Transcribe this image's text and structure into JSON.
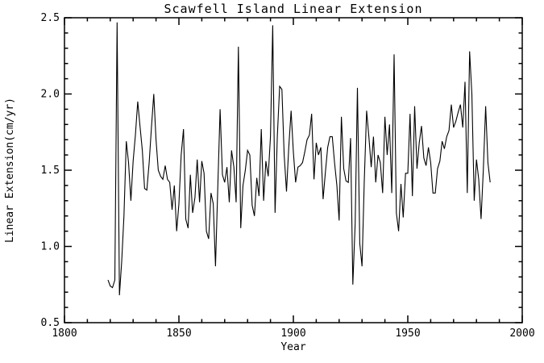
{
  "figure": {
    "background_color": "#ffffff",
    "line_color": "#000000",
    "frame_color": "#000000"
  },
  "chart_data": {
    "type": "line",
    "title": "Scawfell Island Linear Extension",
    "xlabel": "Year",
    "ylabel": "Linear Extension(cm/yr)",
    "xlim": [
      1800,
      2000
    ],
    "ylim": [
      0.5,
      2.5
    ],
    "x_major_ticks": [
      1800,
      1850,
      1900,
      1950,
      2000
    ],
    "x_minor_step": 10,
    "y_major_ticks": [
      0.5,
      1.0,
      1.5,
      2.0,
      2.5
    ],
    "y_minor_step": 0.1,
    "grid": false,
    "legend": "none",
    "ticks": "inward on all four sides",
    "series": [
      {
        "name": "linear-extension",
        "x": [
          1819,
          1820,
          1821,
          1822,
          1823,
          1824,
          1825,
          1826,
          1827,
          1828,
          1829,
          1830,
          1831,
          1832,
          1833,
          1834,
          1835,
          1836,
          1837,
          1838,
          1839,
          1840,
          1841,
          1842,
          1843,
          1844,
          1845,
          1846,
          1847,
          1848,
          1849,
          1850,
          1851,
          1852,
          1853,
          1854,
          1855,
          1856,
          1857,
          1858,
          1859,
          1860,
          1861,
          1862,
          1863,
          1864,
          1865,
          1866,
          1867,
          1868,
          1869,
          1870,
          1871,
          1872,
          1873,
          1874,
          1875,
          1876,
          1877,
          1878,
          1879,
          1880,
          1881,
          1882,
          1883,
          1884,
          1885,
          1886,
          1887,
          1888,
          1889,
          1890,
          1891,
          1892,
          1893,
          1894,
          1895,
          1896,
          1897,
          1898,
          1899,
          1900,
          1901,
          1902,
          1903,
          1904,
          1905,
          1906,
          1907,
          1908,
          1909,
          1910,
          1911,
          1912,
          1913,
          1914,
          1915,
          1916,
          1917,
          1918,
          1919,
          1920,
          1921,
          1922,
          1923,
          1924,
          1925,
          1926,
          1927,
          1928,
          1929,
          1930,
          1931,
          1932,
          1933,
          1934,
          1935,
          1936,
          1937,
          1938,
          1939,
          1940,
          1941,
          1942,
          1943,
          1944,
          1945,
          1946,
          1947,
          1948,
          1949,
          1950,
          1951,
          1952,
          1953,
          1954,
          1955,
          1956,
          1957,
          1958,
          1959,
          1960,
          1961,
          1962,
          1963,
          1964,
          1965,
          1966,
          1967,
          1968,
          1969,
          1970,
          1971,
          1972,
          1973,
          1974,
          1975,
          1976,
          1977,
          1978,
          1979,
          1980,
          1981,
          1982,
          1983,
          1984,
          1985,
          1986
        ],
        "y": [
          0.78,
          0.74,
          0.73,
          0.78,
          2.47,
          0.68,
          0.9,
          1.2,
          1.69,
          1.55,
          1.3,
          1.56,
          1.73,
          1.95,
          1.79,
          1.63,
          1.38,
          1.37,
          1.55,
          1.78,
          2.0,
          1.7,
          1.5,
          1.46,
          1.44,
          1.53,
          1.44,
          1.42,
          1.24,
          1.4,
          1.1,
          1.28,
          1.6,
          1.77,
          1.18,
          1.12,
          1.47,
          1.22,
          1.32,
          1.57,
          1.29,
          1.56,
          1.48,
          1.1,
          1.05,
          1.35,
          1.28,
          0.87,
          1.4,
          1.9,
          1.47,
          1.42,
          1.52,
          1.29,
          1.63,
          1.52,
          1.29,
          2.31,
          1.12,
          1.4,
          1.5,
          1.63,
          1.6,
          1.27,
          1.2,
          1.45,
          1.33,
          1.77,
          1.3,
          1.56,
          1.46,
          1.72,
          2.45,
          1.22,
          1.72,
          2.05,
          2.03,
          1.6,
          1.36,
          1.65,
          1.89,
          1.62,
          1.42,
          1.52,
          1.53,
          1.55,
          1.62,
          1.7,
          1.73,
          1.87,
          1.44,
          1.68,
          1.6,
          1.65,
          1.31,
          1.49,
          1.65,
          1.72,
          1.72,
          1.55,
          1.4,
          1.17,
          1.85,
          1.51,
          1.43,
          1.42,
          1.71,
          0.75,
          1.15,
          2.04,
          1.02,
          0.87,
          1.43,
          1.89,
          1.72,
          1.52,
          1.72,
          1.42,
          1.6,
          1.55,
          1.35,
          1.85,
          1.6,
          1.8,
          1.35,
          2.26,
          1.22,
          1.1,
          1.41,
          1.19,
          1.48,
          1.48,
          1.87,
          1.33,
          1.92,
          1.51,
          1.68,
          1.79,
          1.58,
          1.53,
          1.65,
          1.55,
          1.35,
          1.35,
          1.51,
          1.56,
          1.69,
          1.64,
          1.72,
          1.76,
          1.93,
          1.78,
          1.82,
          1.88,
          1.93,
          1.78,
          2.08,
          1.35,
          2.28,
          2.0,
          1.3,
          1.57,
          1.44,
          1.18,
          1.5,
          1.92,
          1.55,
          1.42
        ]
      }
    ]
  }
}
